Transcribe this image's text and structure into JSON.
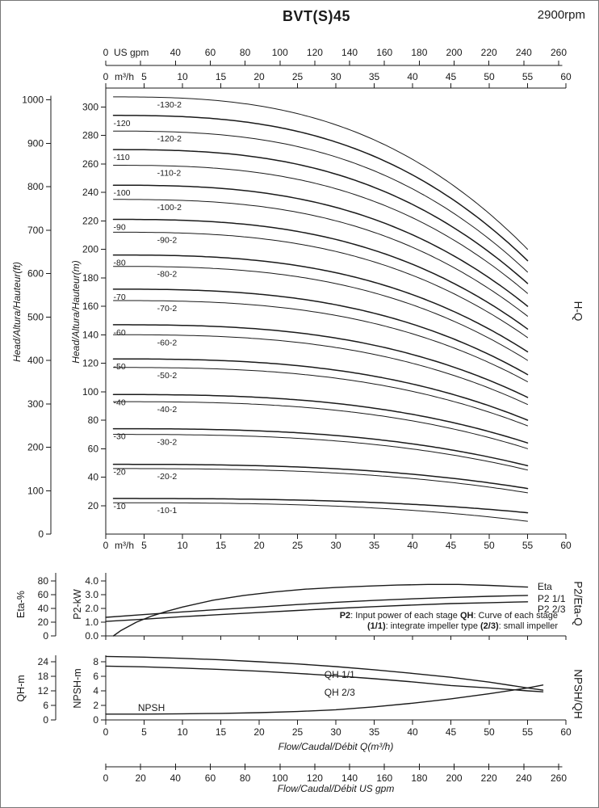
{
  "page": {
    "title": "BVT(S)45",
    "rpm": "2900rpm",
    "ink": "#1a1a1a",
    "right_labels": {
      "main": "H-Q",
      "middle": "P2/Eta-Q",
      "bottom": "NPSH/QH"
    }
  },
  "chart_data": [
    {
      "id": "hq-main",
      "type": "line",
      "q_range_m3h": [
        0,
        60
      ],
      "head_range_m": [
        0,
        313
      ],
      "grid": false,
      "x_top_usgpm": {
        "unit": "US gpm",
        "tick_step": 20,
        "max": 260,
        "labels": [
          0,
          40,
          60,
          80,
          100,
          120,
          140,
          160,
          180,
          200,
          220,
          240,
          260
        ]
      },
      "x_m3h": {
        "unit": "m³/h",
        "labels": [
          0,
          5,
          10,
          15,
          20,
          25,
          30,
          35,
          40,
          45,
          50,
          55,
          60
        ]
      },
      "y_ft": {
        "title": "Head/Altura/Hauteur(ft)",
        "labels": [
          0,
          100,
          200,
          300,
          400,
          500,
          600,
          700,
          800,
          900,
          1000
        ]
      },
      "y_m": {
        "title": "Head/Altura/Hauteur(m)",
        "labels": [
          20,
          40,
          60,
          80,
          100,
          120,
          140,
          160,
          180,
          200,
          220,
          240,
          260,
          280,
          300
        ]
      },
      "q_start": 1,
      "q_end": 55,
      "droop_exp": 2.8,
      "curves": [
        {
          "label": "-130-2",
          "h0": 307,
          "h55": 200,
          "label_q": 6.7,
          "w": 1.0
        },
        {
          "label": "-120",
          "h0": 294,
          "h55": 192,
          "label_q": 1.0,
          "w": 1.5
        },
        {
          "label": "-120-2",
          "h0": 283,
          "h55": 184,
          "label_q": 6.7,
          "w": 1.0
        },
        {
          "label": "-110",
          "h0": 270,
          "h55": 176,
          "label_q": 1.0,
          "w": 1.5
        },
        {
          "label": "-110-2",
          "h0": 259,
          "h55": 169,
          "label_q": 6.7,
          "w": 1.0
        },
        {
          "label": "-100",
          "h0": 245,
          "h55": 160,
          "label_q": 1.0,
          "w": 1.5
        },
        {
          "label": "-100-2",
          "h0": 235,
          "h55": 153,
          "label_q": 6.7,
          "w": 1.0
        },
        {
          "label": "-90",
          "h0": 221,
          "h55": 144,
          "label_q": 1.0,
          "w": 1.5
        },
        {
          "label": "-90-2",
          "h0": 212,
          "h55": 138,
          "label_q": 6.7,
          "w": 1.0
        },
        {
          "label": "-80",
          "h0": 196,
          "h55": 128,
          "label_q": 1.0,
          "w": 1.5
        },
        {
          "label": "-80-2",
          "h0": 188,
          "h55": 122,
          "label_q": 6.7,
          "w": 1.0
        },
        {
          "label": "-70",
          "h0": 172,
          "h55": 112,
          "label_q": 1.0,
          "w": 1.5
        },
        {
          "label": "-70-2",
          "h0": 164,
          "h55": 107,
          "label_q": 6.7,
          "w": 1.0
        },
        {
          "label": "-60",
          "h0": 147,
          "h55": 96,
          "label_q": 1.0,
          "w": 1.5
        },
        {
          "label": "-60-2",
          "h0": 140,
          "h55": 91,
          "label_q": 6.7,
          "w": 1.0
        },
        {
          "label": "-50",
          "h0": 123,
          "h55": 80,
          "label_q": 1.0,
          "w": 1.5
        },
        {
          "label": "-50-2",
          "h0": 117,
          "h55": 76,
          "label_q": 6.7,
          "w": 1.0
        },
        {
          "label": "-40",
          "h0": 98,
          "h55": 64,
          "label_q": 1.0,
          "w": 1.5
        },
        {
          "label": "-40-2",
          "h0": 93,
          "h55": 60,
          "label_q": 6.7,
          "w": 1.0
        },
        {
          "label": "-30",
          "h0": 74,
          "h55": 48,
          "label_q": 1.0,
          "w": 1.5
        },
        {
          "label": "-30-2",
          "h0": 70,
          "h55": 45,
          "label_q": 6.7,
          "w": 1.0
        },
        {
          "label": "-20",
          "h0": 49,
          "h55": 32,
          "label_q": 1.0,
          "w": 1.5
        },
        {
          "label": "-20-2",
          "h0": 46,
          "h55": 29,
          "label_q": 6.7,
          "w": 1.0
        },
        {
          "label": "-10",
          "h0": 25,
          "h55": 15,
          "label_q": 1.0,
          "w": 1.5
        },
        {
          "label": "-10-1",
          "h0": 22,
          "h55": 9,
          "label_q": 6.7,
          "w": 1.0
        }
      ]
    },
    {
      "id": "p2-eta",
      "type": "line",
      "q_range_m3h": [
        0,
        60
      ],
      "p2_range_kw": [
        0,
        4.6
      ],
      "eta_range_pct": [
        0,
        92
      ],
      "y_eta": {
        "title": "Eta-%",
        "labels": [
          0,
          20,
          40,
          60,
          80
        ]
      },
      "y_p2": {
        "title": "P2-kW",
        "labels": [
          "0.0",
          "1.0",
          "2.0",
          "3.0",
          "4.0"
        ]
      },
      "series": [
        {
          "name": "Eta",
          "scale": "eta",
          "label_at": [
            56.3,
            72
          ],
          "points": [
            [
              1,
              0
            ],
            [
              2,
              8
            ],
            [
              4,
              20
            ],
            [
              6,
              29
            ],
            [
              8,
              36
            ],
            [
              10,
              42
            ],
            [
              14,
              52
            ],
            [
              18,
              59
            ],
            [
              22,
              64
            ],
            [
              26,
              68
            ],
            [
              30,
              70.5
            ],
            [
              34,
              72.5
            ],
            [
              38,
              74
            ],
            [
              42,
              75
            ],
            [
              46,
              75
            ],
            [
              50,
              73.5
            ],
            [
              55,
              71
            ]
          ]
        },
        {
          "name": "P2 1/1",
          "scale": "kw",
          "label_at": [
            56.3,
            2.7
          ],
          "points": [
            [
              0,
              1.35
            ],
            [
              5,
              1.55
            ],
            [
              10,
              1.75
            ],
            [
              15,
              1.93
            ],
            [
              20,
              2.1
            ],
            [
              25,
              2.28
            ],
            [
              30,
              2.45
            ],
            [
              35,
              2.58
            ],
            [
              40,
              2.7
            ],
            [
              45,
              2.8
            ],
            [
              50,
              2.88
            ],
            [
              55,
              2.95
            ]
          ]
        },
        {
          "name": "P2 2/3",
          "scale": "kw",
          "label_at": [
            56.3,
            1.95
          ],
          "points": [
            [
              0,
              1.05
            ],
            [
              5,
              1.22
            ],
            [
              10,
              1.4
            ],
            [
              15,
              1.55
            ],
            [
              20,
              1.7
            ],
            [
              25,
              1.85
            ],
            [
              30,
              2.0
            ],
            [
              35,
              2.13
            ],
            [
              40,
              2.25
            ],
            [
              45,
              2.35
            ],
            [
              50,
              2.42
            ],
            [
              55,
              2.48
            ]
          ]
        }
      ],
      "notes": [
        {
          "parts": [
            {
              "t": "P2",
              "b": true
            },
            {
              "t": ": Input power of each stage "
            },
            {
              "t": "QH",
              "b": true
            },
            {
              "t": ": Curve of each stage"
            }
          ]
        },
        {
          "parts": [
            {
              "t": "(1/1)",
              "b": true
            },
            {
              "t": ": integrate impeller type "
            },
            {
              "t": "(2/3)",
              "b": true
            },
            {
              "t": ": small impeller"
            }
          ]
        }
      ]
    },
    {
      "id": "npsh-qh",
      "type": "line",
      "q_range_m3h": [
        0,
        60
      ],
      "qh_range_m": [
        0,
        26
      ],
      "npsh_range_m": [
        0,
        8.7
      ],
      "y_qh": {
        "title": "QH-m",
        "labels": [
          0,
          6,
          12,
          18,
          24
        ]
      },
      "y_npsh": {
        "title": "NPSH-m",
        "labels": [
          0,
          2,
          4,
          6,
          8
        ]
      },
      "x_bottom": {
        "title": "Flow/Caudal/Débit Q(m³/h)",
        "labels": [
          0,
          5,
          10,
          15,
          20,
          25,
          30,
          35,
          40,
          45,
          50,
          55,
          60
        ]
      },
      "x_usgpm": {
        "title": "Flow/Caudal/Débit US gpm",
        "labels": [
          0,
          20,
          40,
          60,
          80,
          100,
          120,
          140,
          160,
          180,
          200,
          220,
          240,
          260
        ]
      },
      "series": [
        {
          "name": "QH 1/1",
          "scale": "qh",
          "label_at": [
            28.5,
            18.7
          ],
          "points": [
            [
              0,
              26.2
            ],
            [
              5,
              25.9
            ],
            [
              10,
              25.4
            ],
            [
              15,
              24.8
            ],
            [
              20,
              24.0
            ],
            [
              25,
              23.1
            ],
            [
              30,
              22.0
            ],
            [
              35,
              20.7
            ],
            [
              40,
              19.2
            ],
            [
              45,
              17.6
            ],
            [
              50,
              15.6
            ],
            [
              55,
              13.2
            ],
            [
              57,
              12.3
            ]
          ]
        },
        {
          "name": "QH 2/3",
          "scale": "qh",
          "label_at": [
            28.5,
            11.3
          ],
          "points": [
            [
              0,
              22.2
            ],
            [
              5,
              21.9
            ],
            [
              10,
              21.4
            ],
            [
              15,
              20.8
            ],
            [
              20,
              20.1
            ],
            [
              25,
              19.2
            ],
            [
              30,
              18.2
            ],
            [
              35,
              17.0
            ],
            [
              40,
              15.7
            ],
            [
              45,
              14.2
            ],
            [
              50,
              13.2
            ],
            [
              55,
              12.0
            ],
            [
              57,
              11.6
            ]
          ]
        },
        {
          "name": "NPSH",
          "scale": "npsh",
          "label_at": [
            4.2,
            1.67
          ],
          "points": [
            [
              0,
              0.8
            ],
            [
              5,
              0.8
            ],
            [
              10,
              0.85
            ],
            [
              15,
              0.9
            ],
            [
              20,
              1.0
            ],
            [
              25,
              1.15
            ],
            [
              30,
              1.4
            ],
            [
              35,
              1.8
            ],
            [
              40,
              2.3
            ],
            [
              45,
              2.9
            ],
            [
              50,
              3.6
            ],
            [
              55,
              4.4
            ],
            [
              57,
              4.8
            ]
          ]
        }
      ]
    }
  ]
}
